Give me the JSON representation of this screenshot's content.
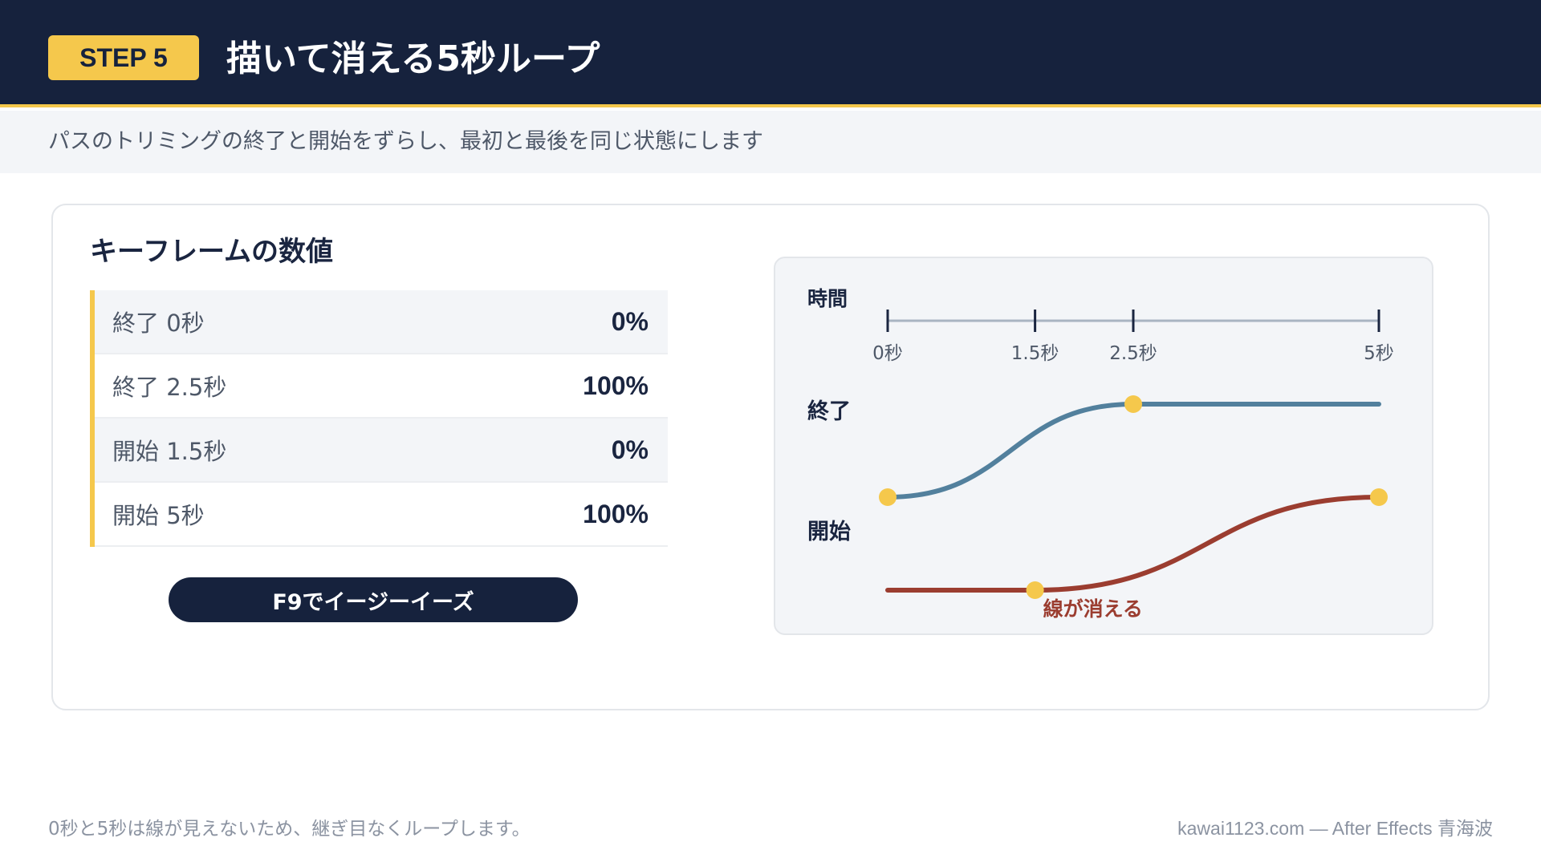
{
  "header": {
    "step_badge": "STEP 5",
    "title": "描いて消える5秒ループ"
  },
  "subtitle": "パスのトリミングの終了と開始をずらし、最初と最後を同じ状態にします",
  "card": {
    "title": "キーフレームの数値",
    "keyframes": [
      {
        "label": "終了 0秒",
        "value": "0%"
      },
      {
        "label": "終了 2.5秒",
        "value": "100%"
      },
      {
        "label": "開始 1.5秒",
        "value": "0%"
      },
      {
        "label": "開始 5秒",
        "value": "100%"
      }
    ],
    "easy_button": "F9でイージーイーズ"
  },
  "diagram": {
    "time_label": "時間",
    "ticks": [
      {
        "t": 0,
        "label": "0秒"
      },
      {
        "t": 1.5,
        "label": "1.5秒"
      },
      {
        "t": 2.5,
        "label": "2.5秒"
      },
      {
        "t": 5,
        "label": "5秒"
      }
    ],
    "end_label": "終了",
    "start_label": "開始",
    "annotation": "線が消える",
    "colors": {
      "end_curve": "#52809d",
      "start_curve": "#9b3d30",
      "keyframe_dot": "#f5c84c",
      "axis": "#a9b4c2",
      "tick": "#1a2540"
    },
    "end_curve": {
      "hold_start": 0,
      "ease_end": 2.5,
      "hold_until": 5
    },
    "start_curve": {
      "hold_start": 0,
      "ease_start": 1.5,
      "ease_end": 5
    }
  },
  "footer": {
    "note": "0秒と5秒は線が見えないため、継ぎ目なくループします。",
    "credit": "kawai1123.com — After Effects 青海波"
  }
}
